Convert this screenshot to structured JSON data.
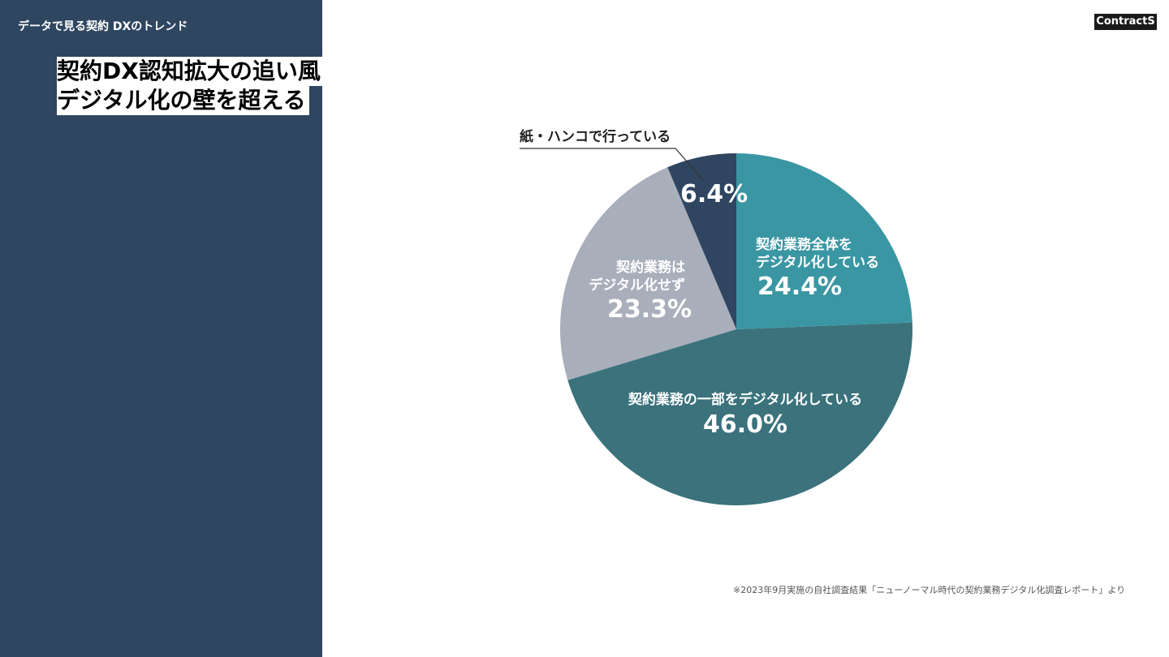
{
  "header": {
    "section": "データで見る契約  DXのトレンド",
    "logo": "ContractS"
  },
  "title": {
    "lines": [
      "契約DX認知拡大の追い風",
      "デジタル化の壁を超える"
    ]
  },
  "chart_data": {
    "type": "pie",
    "categories": [
      "契約業務全体を\nデジタル化している",
      "契約業務の一部をデジタル化している",
      "契約業務は\nデジタル化せず",
      "紙・ハンコで行っている"
    ],
    "values": [
      24.4,
      46.0,
      23.3,
      6.4
    ],
    "value_labels": [
      "24.4%",
      "46.0%",
      "23.3%",
      "6.4%"
    ],
    "colors": [
      "#3a96a3",
      "#3b727c",
      "#a9aebb",
      "#2f4560"
    ]
  },
  "footnote": "※2023年9月実施の自社調査結果「ニューノーマル時代の契約業務デジタル化調査レポート」より"
}
